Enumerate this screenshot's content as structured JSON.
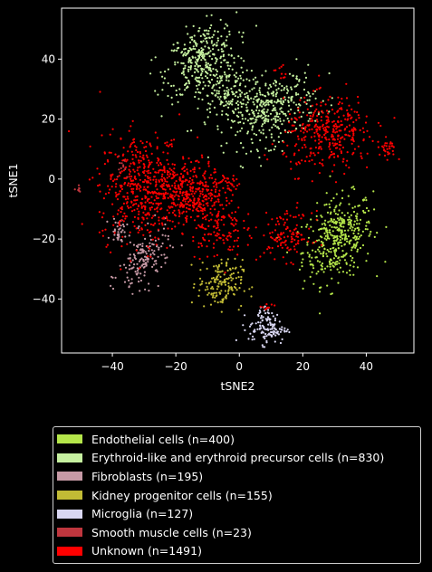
{
  "chart_data": {
    "type": "scatter",
    "xlabel": "tSNE2",
    "ylabel": "tSNE1",
    "xlim": [
      -56,
      55
    ],
    "ylim": [
      -58,
      57
    ],
    "xticks": [
      -40,
      -20,
      0,
      20,
      40
    ],
    "yticks": [
      -40,
      -20,
      0,
      20,
      40
    ],
    "xtick_labels": [
      "−40",
      "−20",
      "0",
      "20",
      "40"
    ],
    "ytick_labels": [
      "−40",
      "−20",
      "0",
      "20",
      "40"
    ],
    "grid": false,
    "legend_position": "below",
    "background": "#000000",
    "series": [
      {
        "name": "Endothelial cells (n=400)",
        "color": "#b5e64a",
        "count": 400,
        "clusters": [
          [
            31,
            -20,
            5.5,
            7,
            0.3,
            400
          ]
        ]
      },
      {
        "name": "Erythroid-like and erythroid precursor cells (n=830)",
        "color": "#c6f0a0",
        "count": 830,
        "clusters": [
          [
            -12,
            40,
            5.5,
            6,
            0.35,
            320
          ],
          [
            -5,
            29,
            4,
            5,
            0.2,
            150
          ],
          [
            10,
            23,
            7,
            6,
            0.35,
            360
          ]
        ]
      },
      {
        "name": "Fibroblasts (n=195)",
        "color": "#c79aa6",
        "count": 195,
        "clusters": [
          [
            -30,
            -27,
            4,
            5,
            0.45,
            160
          ],
          [
            -38,
            -17,
            1.2,
            2.2,
            0,
            35
          ]
        ]
      },
      {
        "name": "Kidney progenitor cells (n=155)",
        "color": "#c2bb35",
        "count": 155,
        "clusters": [
          [
            -6,
            -35,
            3.5,
            4,
            0,
            155
          ]
        ]
      },
      {
        "name": "Microglia (n=127)",
        "color": "#d9d7f2",
        "count": 127,
        "clusters": [
          [
            9,
            -50,
            3,
            2.5,
            0,
            110
          ],
          [
            8,
            -45,
            1.2,
            2,
            0,
            17
          ]
        ]
      },
      {
        "name": "Smooth muscle cells (n=23)",
        "color": "#c0363e",
        "count": 23,
        "clusters": [
          [
            -51,
            -3,
            0.8,
            1.2,
            0,
            8
          ],
          [
            -37,
            5,
            1.2,
            2.5,
            0,
            15
          ]
        ]
      },
      {
        "name": "Unknown (n=1491)",
        "color": "#ff0000",
        "count": 1491,
        "clusters": [
          [
            -30,
            -3,
            7,
            9,
            0,
            520
          ],
          [
            -15,
            -4,
            5,
            5,
            0,
            280
          ],
          [
            -7,
            -16,
            4,
            5,
            0,
            130
          ],
          [
            -4,
            -1,
            2.5,
            2,
            0,
            40
          ],
          [
            28,
            15,
            7,
            6,
            0.1,
            350
          ],
          [
            15,
            -19,
            4,
            4,
            0,
            120
          ],
          [
            47,
            10,
            1.5,
            1.5,
            0,
            25
          ],
          [
            -22,
            12,
            0.8,
            0.8,
            0,
            6
          ],
          [
            13,
            35,
            1,
            1.5,
            0,
            10
          ],
          [
            9,
            -43,
            1,
            1,
            0,
            10
          ]
        ]
      }
    ]
  }
}
